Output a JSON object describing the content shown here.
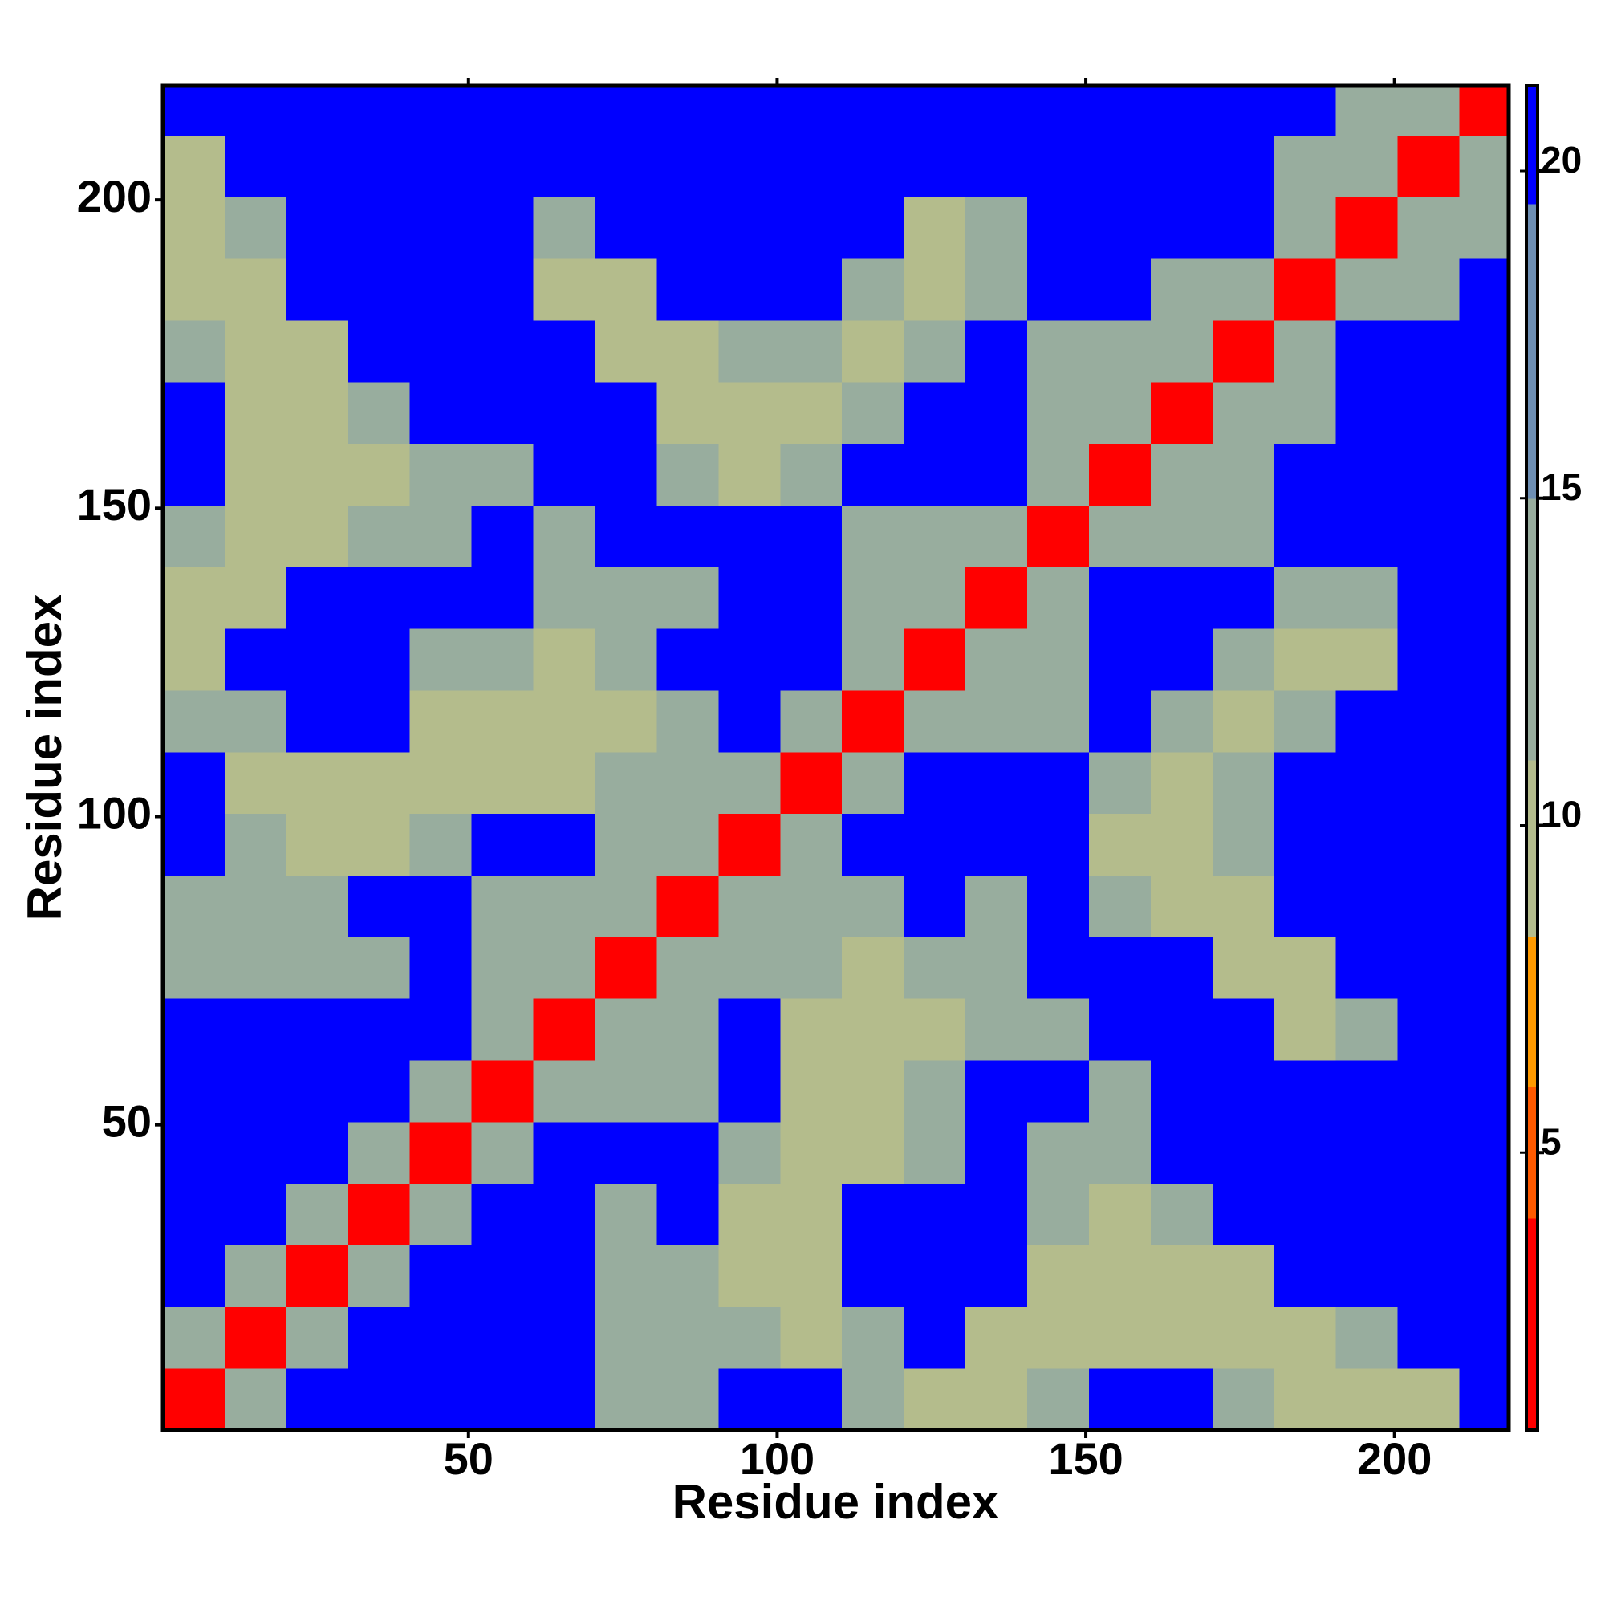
{
  "chart_data": {
    "type": "heatmap",
    "xlabel": "Residue index",
    "ylabel": "Residue index",
    "xlim": [
      0.5,
      218.5
    ],
    "ylim": [
      0.5,
      218.5
    ],
    "xticks": [
      50,
      100,
      150,
      200
    ],
    "yticks": [
      50,
      100,
      150,
      200
    ],
    "bins": [
      0.5,
      10.5,
      20.5,
      30.5,
      40.5,
      50.5,
      60.5,
      70.5,
      80.5,
      90.5,
      100.5,
      110.5,
      120.5,
      130.5,
      140.5,
      150.5,
      160.5,
      170.5,
      180.5,
      190.5,
      200.5,
      210.5,
      218.5
    ],
    "values": [
      [
        3,
        12,
        21,
        21,
        21,
        21,
        21,
        15,
        15,
        21,
        21,
        12,
        10,
        10,
        13,
        21,
        21,
        13,
        11,
        10,
        11,
        21
      ],
      [
        12,
        3,
        12,
        21,
        21,
        21,
        21,
        14,
        14,
        12,
        11,
        12,
        21,
        10,
        9,
        11,
        11,
        10,
        11,
        12,
        21,
        21
      ],
      [
        21,
        12,
        3,
        12,
        21,
        21,
        21,
        14,
        15,
        11,
        10,
        21,
        21,
        21,
        10,
        10,
        10,
        11,
        21,
        21,
        21,
        21
      ],
      [
        21,
        21,
        12,
        3,
        12,
        21,
        21,
        15,
        21,
        11,
        11,
        21,
        21,
        21,
        12,
        11,
        13,
        21,
        21,
        21,
        21,
        21
      ],
      [
        21,
        21,
        21,
        12,
        3,
        12,
        21,
        21,
        21,
        13,
        11,
        11,
        12,
        21,
        15,
        14,
        21,
        21,
        21,
        21,
        21,
        21
      ],
      [
        21,
        21,
        21,
        21,
        12,
        3,
        12,
        15,
        13,
        21,
        10,
        10,
        12,
        21,
        21,
        15,
        21,
        21,
        21,
        21,
        21,
        21
      ],
      [
        21,
        21,
        21,
        21,
        21,
        12,
        3,
        12,
        13,
        21,
        11,
        10,
        11,
        15,
        15,
        21,
        21,
        21,
        10,
        13,
        21,
        21
      ],
      [
        15,
        14,
        14,
        15,
        21,
        15,
        12,
        3,
        12,
        13,
        12,
        11,
        12,
        15,
        21,
        21,
        21,
        9,
        10,
        21,
        21,
        21
      ],
      [
        15,
        14,
        15,
        21,
        21,
        13,
        13,
        12,
        3,
        12,
        12,
        13,
        21,
        15,
        21,
        13,
        10,
        10,
        21,
        21,
        21,
        21
      ],
      [
        21,
        12,
        11,
        11,
        13,
        21,
        21,
        13,
        12,
        3,
        12,
        21,
        21,
        21,
        21,
        11,
        11,
        14,
        21,
        21,
        21,
        21
      ],
      [
        21,
        11,
        10,
        11,
        11,
        10,
        11,
        12,
        12,
        12,
        3,
        12,
        21,
        21,
        21,
        13,
        11,
        13,
        21,
        21,
        21,
        21
      ],
      [
        12,
        12,
        21,
        21,
        11,
        10,
        10,
        11,
        13,
        21,
        12,
        3,
        12,
        12,
        14,
        21,
        13,
        11,
        12,
        21,
        21,
        21
      ],
      [
        10,
        21,
        21,
        21,
        12,
        12,
        11,
        12,
        21,
        21,
        21,
        12,
        3,
        12,
        13,
        21,
        21,
        13,
        11,
        11,
        21,
        21
      ],
      [
        10,
        10,
        21,
        21,
        21,
        21,
        15,
        15,
        15,
        21,
        21,
        12,
        12,
        3,
        12,
        21,
        21,
        21,
        12,
        12,
        21,
        21
      ],
      [
        13,
        9,
        10,
        12,
        15,
        21,
        15,
        21,
        21,
        21,
        21,
        14,
        13,
        12,
        3,
        12,
        12,
        14,
        21,
        21,
        21,
        21
      ],
      [
        21,
        11,
        10,
        11,
        14,
        15,
        21,
        21,
        13,
        11,
        13,
        21,
        21,
        21,
        12,
        3,
        12,
        13,
        21,
        21,
        21,
        21
      ],
      [
        21,
        11,
        10,
        13,
        21,
        21,
        21,
        21,
        10,
        11,
        11,
        13,
        21,
        21,
        12,
        12,
        3,
        12,
        14,
        21,
        21,
        21
      ],
      [
        13,
        10,
        11,
        21,
        21,
        21,
        21,
        9,
        10,
        14,
        13,
        11,
        13,
        21,
        14,
        13,
        12,
        3,
        12,
        21,
        21,
        21
      ],
      [
        11,
        11,
        21,
        21,
        21,
        21,
        10,
        10,
        21,
        21,
        21,
        12,
        11,
        12,
        21,
        21,
        14,
        12,
        3,
        12,
        13,
        21
      ],
      [
        10,
        12,
        21,
        21,
        21,
        21,
        13,
        21,
        21,
        21,
        21,
        21,
        11,
        12,
        21,
        21,
        21,
        21,
        12,
        3,
        12,
        13
      ],
      [
        11,
        21,
        21,
        21,
        21,
        21,
        21,
        21,
        21,
        21,
        21,
        21,
        21,
        21,
        21,
        21,
        21,
        21,
        13,
        12,
        3,
        12
      ],
      [
        21,
        21,
        21,
        21,
        21,
        21,
        21,
        21,
        21,
        21,
        21,
        21,
        21,
        21,
        21,
        21,
        21,
        21,
        21,
        13,
        12,
        3
      ]
    ],
    "clim": [
      0.76,
      21.3
    ],
    "cticks": [
      5,
      10,
      15,
      20
    ],
    "colorscale": [
      {
        "max": 4,
        "color": "#ff0000"
      },
      {
        "max": 6,
        "color": "#ff5a00"
      },
      {
        "max": 8.3,
        "color": "#ff9a00"
      },
      {
        "max": 11,
        "color": "#b4bc8c"
      },
      {
        "max": 15,
        "color": "#98ad9e"
      },
      {
        "max": 19.5,
        "color": "#6e8fb4"
      },
      {
        "max": 21.3,
        "color": "#0000ff"
      }
    ]
  }
}
